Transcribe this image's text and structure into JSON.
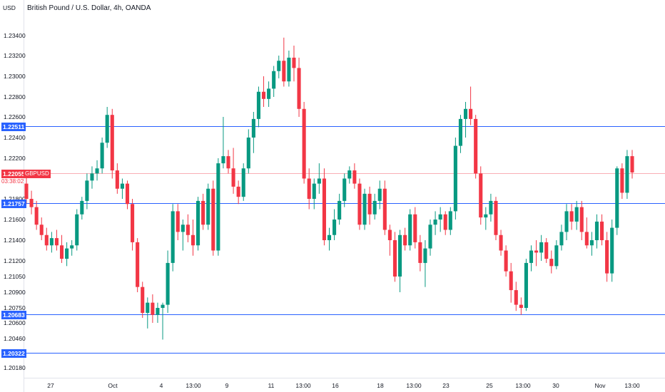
{
  "header": {
    "title": "British Pound / U.S. Dollar, 4h, OANDA",
    "currency": "USD"
  },
  "price_axis": {
    "labels": [
      "1.23400",
      "1.23200",
      "1.23000",
      "1.22800",
      "1.22600",
      "1.22400",
      "1.22200",
      "1.21800",
      "1.21600",
      "1.21400",
      "1.21200",
      "1.21050",
      "1.20900",
      "1.20750",
      "1.20600",
      "1.20460",
      "1.20180"
    ]
  },
  "time_axis": {
    "labels": [
      "27",
      "Oct",
      "4",
      "13:00",
      "9",
      "11",
      "13:00",
      "16",
      "18",
      "13:00",
      "23",
      "25",
      "13:00",
      "30",
      "Nov",
      "13:00"
    ]
  },
  "level_lines": [
    {
      "value": "1.22511",
      "color": "#2962ff"
    },
    {
      "value": "1.21757",
      "color": "#2962ff"
    },
    {
      "value": "1.20683",
      "color": "#2962ff"
    },
    {
      "value": "1.20322",
      "color": "#2962ff"
    }
  ],
  "current_price": {
    "value": "1.22055",
    "symbol": "GBPUSD",
    "countdown": "03:38:02",
    "color": "#f23645"
  },
  "colors": {
    "up": "#089981",
    "down": "#f23645",
    "level": "#2962ff"
  },
  "chart_data": {
    "type": "candlestick",
    "ohlc": [
      [
        1.2195,
        1.2205,
        1.2175,
        1.218
      ],
      [
        1.218,
        1.2188,
        1.2165,
        1.2172
      ],
      [
        1.2172,
        1.2178,
        1.215,
        1.2155
      ],
      [
        1.2155,
        1.2162,
        1.214,
        1.2145
      ],
      [
        1.2145,
        1.2152,
        1.213,
        1.2135
      ],
      [
        1.2135,
        1.2148,
        1.2128,
        1.2142
      ],
      [
        1.2142,
        1.215,
        1.213,
        1.2135
      ],
      [
        1.2135,
        1.2145,
        1.2118,
        1.2122
      ],
      [
        1.2122,
        1.2138,
        1.2115,
        1.2132
      ],
      [
        1.2132,
        1.214,
        1.2125,
        1.2135
      ],
      [
        1.2135,
        1.217,
        1.213,
        1.2165
      ],
      [
        1.2165,
        1.2182,
        1.216,
        1.2178
      ],
      [
        1.2178,
        1.2205,
        1.217,
        1.2198
      ],
      [
        1.2198,
        1.2212,
        1.219,
        1.2205
      ],
      [
        1.2205,
        1.2218,
        1.2198,
        1.221
      ],
      [
        1.221,
        1.224,
        1.2205,
        1.2235
      ],
      [
        1.2235,
        1.227,
        1.223,
        1.2262
      ],
      [
        1.2262,
        1.2268,
        1.22,
        1.2208
      ],
      [
        1.2208,
        1.2215,
        1.2185,
        1.219
      ],
      [
        1.219,
        1.22,
        1.218,
        1.2195
      ],
      [
        1.2195,
        1.2198,
        1.217,
        1.2175
      ],
      [
        1.2175,
        1.218,
        1.213,
        1.2138
      ],
      [
        1.2138,
        1.2142,
        1.209,
        1.2095
      ],
      [
        1.2095,
        1.21,
        1.2065,
        1.207
      ],
      [
        1.207,
        1.2085,
        1.2055,
        1.208
      ],
      [
        1.208,
        1.2088,
        1.206,
        1.2068
      ],
      [
        1.2068,
        1.208,
        1.206,
        1.2075
      ],
      [
        1.2075,
        1.208,
        1.2045,
        1.2078
      ],
      [
        1.2078,
        1.213,
        1.207,
        1.2118
      ],
      [
        1.2118,
        1.2175,
        1.211,
        1.2168
      ],
      [
        1.2168,
        1.2175,
        1.214,
        1.2148
      ],
      [
        1.2148,
        1.216,
        1.213,
        1.2155
      ],
      [
        1.2155,
        1.2165,
        1.2138,
        1.2145
      ],
      [
        1.2145,
        1.216,
        1.2125,
        1.2135
      ],
      [
        1.2135,
        1.2182,
        1.213,
        1.2178
      ],
      [
        1.2178,
        1.2185,
        1.215,
        1.2155
      ],
      [
        1.2155,
        1.2195,
        1.215,
        1.219
      ],
      [
        1.219,
        1.2198,
        1.2125,
        1.213
      ],
      [
        1.213,
        1.222,
        1.2125,
        1.2215
      ],
      [
        1.2215,
        1.226,
        1.221,
        1.2222
      ],
      [
        1.2222,
        1.2228,
        1.2205,
        1.221
      ],
      [
        1.221,
        1.223,
        1.2185,
        1.2192
      ],
      [
        1.2192,
        1.2198,
        1.2175,
        1.2182
      ],
      [
        1.2182,
        1.2215,
        1.2178,
        1.221
      ],
      [
        1.221,
        1.2248,
        1.2205,
        1.224
      ],
      [
        1.224,
        1.2265,
        1.2225,
        1.2258
      ],
      [
        1.2258,
        1.229,
        1.225,
        1.2285
      ],
      [
        1.2285,
        1.23,
        1.227,
        1.2278
      ],
      [
        1.2278,
        1.2295,
        1.227,
        1.2288
      ],
      [
        1.2288,
        1.231,
        1.228,
        1.2305
      ],
      [
        1.2305,
        1.232,
        1.2298,
        1.2315
      ],
      [
        1.2315,
        1.2338,
        1.229,
        1.2295
      ],
      [
        1.2295,
        1.2325,
        1.229,
        1.2318
      ],
      [
        1.2318,
        1.233,
        1.2295,
        1.2308
      ],
      [
        1.2308,
        1.2318,
        1.226,
        1.2268
      ],
      [
        1.2268,
        1.2275,
        1.2195,
        1.22
      ],
      [
        1.22,
        1.221,
        1.217,
        1.218
      ],
      [
        1.218,
        1.22,
        1.217,
        1.2195
      ],
      [
        1.2195,
        1.2215,
        1.2185,
        1.22
      ],
      [
        1.22,
        1.221,
        1.2135,
        1.214
      ],
      [
        1.214,
        1.2152,
        1.213,
        1.2145
      ],
      [
        1.2145,
        1.217,
        1.214,
        1.216
      ],
      [
        1.216,
        1.2185,
        1.2155,
        1.2178
      ],
      [
        1.2178,
        1.2205,
        1.2172,
        1.22
      ],
      [
        1.22,
        1.2212,
        1.2195,
        1.2208
      ],
      [
        1.2208,
        1.2215,
        1.219,
        1.2195
      ],
      [
        1.2195,
        1.22,
        1.215,
        1.2155
      ],
      [
        1.2155,
        1.219,
        1.215,
        1.2185
      ],
      [
        1.2185,
        1.2192,
        1.2155,
        1.2165
      ],
      [
        1.2165,
        1.2185,
        1.216,
        1.2178
      ],
      [
        1.2178,
        1.2198,
        1.217,
        1.219
      ],
      [
        1.219,
        1.2198,
        1.2145,
        1.215
      ],
      [
        1.215,
        1.2155,
        1.2125,
        1.214
      ],
      [
        1.214,
        1.2148,
        1.21,
        1.2105
      ],
      [
        1.2105,
        1.215,
        1.209,
        1.2145
      ],
      [
        1.2145,
        1.2152,
        1.213,
        1.2135
      ],
      [
        1.2135,
        1.217,
        1.213,
        1.2165
      ],
      [
        1.2165,
        1.2172,
        1.2132,
        1.2138
      ],
      [
        1.2138,
        1.2145,
        1.211,
        1.2118
      ],
      [
        1.2118,
        1.214,
        1.2095,
        1.2132
      ],
      [
        1.2132,
        1.216,
        1.2125,
        1.2155
      ],
      [
        1.2155,
        1.2168,
        1.2145,
        1.216
      ],
      [
        1.216,
        1.2172,
        1.2148,
        1.2165
      ],
      [
        1.2165,
        1.2168,
        1.2145,
        1.215
      ],
      [
        1.215,
        1.2172,
        1.2145,
        1.2168
      ],
      [
        1.2168,
        1.224,
        1.216,
        1.2232
      ],
      [
        1.2232,
        1.2262,
        1.2225,
        1.2258
      ],
      [
        1.2258,
        1.2275,
        1.224,
        1.2268
      ],
      [
        1.2268,
        1.229,
        1.2252,
        1.2258
      ],
      [
        1.2258,
        1.2262,
        1.22,
        1.2205
      ],
      [
        1.2205,
        1.2212,
        1.2155,
        1.2162
      ],
      [
        1.2162,
        1.2172,
        1.215,
        1.2165
      ],
      [
        1.2165,
        1.2185,
        1.2158,
        1.2178
      ],
      [
        1.2178,
        1.2182,
        1.214,
        1.2145
      ],
      [
        1.2145,
        1.215,
        1.2125,
        1.213
      ],
      [
        1.213,
        1.2135,
        1.2105,
        1.211
      ],
      [
        1.211,
        1.2118,
        1.208,
        1.2092
      ],
      [
        1.2092,
        1.21,
        1.2072,
        1.2078
      ],
      [
        1.2078,
        1.2085,
        1.2068,
        1.2075
      ],
      [
        1.2075,
        1.2122,
        1.2072,
        1.2118
      ],
      [
        1.2118,
        1.2135,
        1.211,
        1.213
      ],
      [
        1.213,
        1.214,
        1.2115,
        1.2128
      ],
      [
        1.2128,
        1.2145,
        1.212,
        1.2138
      ],
      [
        1.2138,
        1.2142,
        1.2118,
        1.2122
      ],
      [
        1.2122,
        1.213,
        1.2108,
        1.2115
      ],
      [
        1.2115,
        1.214,
        1.2112,
        1.2135
      ],
      [
        1.2135,
        1.2155,
        1.213,
        1.2148
      ],
      [
        1.2148,
        1.2175,
        1.214,
        1.2168
      ],
      [
        1.2168,
        1.2175,
        1.215,
        1.2158
      ],
      [
        1.2158,
        1.2178,
        1.215,
        1.2172
      ],
      [
        1.2172,
        1.2178,
        1.214,
        1.2148
      ],
      [
        1.2148,
        1.2162,
        1.2132,
        1.2135
      ],
      [
        1.2135,
        1.2148,
        1.2125,
        1.214
      ],
      [
        1.214,
        1.2165,
        1.2132,
        1.2158
      ],
      [
        1.2158,
        1.2165,
        1.2135,
        1.214
      ],
      [
        1.214,
        1.2148,
        1.21,
        1.2108
      ],
      [
        1.2108,
        1.216,
        1.21,
        1.2152
      ],
      [
        1.2152,
        1.2212,
        1.2145,
        1.221
      ],
      [
        1.221,
        1.2215,
        1.218,
        1.2186
      ],
      [
        1.2186,
        1.2228,
        1.218,
        1.2222
      ],
      [
        1.2222,
        1.2228,
        1.22,
        1.2206
      ]
    ]
  }
}
